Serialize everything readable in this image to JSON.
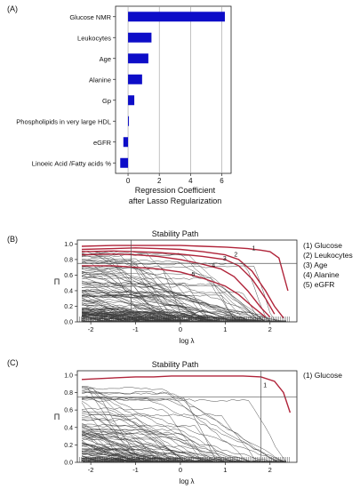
{
  "colors": {
    "bar": "#0d0dc8",
    "highlight": "#b0243a",
    "path": "#3c3c3c",
    "grid": "#9a9a9a"
  },
  "panel_labels": [
    "(A)",
    "(B)",
    "(C)"
  ],
  "chart_data": [
    {
      "type": "bar",
      "orientation": "horizontal",
      "panel": "(A)",
      "categories": [
        "Glucose NMR",
        "Leukocytes",
        "Age",
        "Alanine",
        "Gp",
        "Phospholipids in very large HDL",
        "eGFR",
        "Linoeic Acid /Fatty acids %"
      ],
      "values": [
        6.2,
        1.5,
        1.3,
        0.9,
        0.4,
        0.05,
        -0.3,
        -0.5
      ],
      "xlabel": "Regression Coefficient",
      "xlabel2": "after Lasso Regularization",
      "xticks": [
        "0",
        "2",
        "4",
        "6"
      ],
      "xlim": [
        -0.8,
        6.6
      ],
      "grid": "vertical"
    },
    {
      "type": "line",
      "panel": "(B)",
      "title": "Stability Path",
      "xlabel": "log λ",
      "ylabel": "Π",
      "xlim": [
        -2.3,
        2.6
      ],
      "ylim": [
        0,
        1.05
      ],
      "xticks": [
        "-2",
        "-1",
        "0",
        "1",
        "2"
      ],
      "yticks": [
        "0.0",
        "0.2",
        "0.4",
        "0.6",
        "0.8",
        "1.0"
      ],
      "threshold": 0.75,
      "vline": -1.1,
      "background_series_count": 120,
      "series": [
        {
          "name": "(1) Glucose",
          "path_label": "1",
          "x": [
            -2.2,
            -1.5,
            -1.0,
            -0.5,
            0.0,
            0.5,
            1.0,
            1.5,
            1.8,
            2.0,
            2.2,
            2.4
          ],
          "y": [
            0.97,
            0.98,
            0.98,
            0.98,
            0.98,
            0.97,
            0.96,
            0.94,
            0.92,
            0.9,
            0.82,
            0.4
          ]
        },
        {
          "name": "(2) Leukocytes",
          "path_label": "2",
          "x": [
            -2.2,
            -1.5,
            -1.0,
            -0.5,
            0.0,
            0.5,
            1.0,
            1.3,
            1.6,
            1.9,
            2.1,
            2.3
          ],
          "y": [
            0.93,
            0.94,
            0.95,
            0.94,
            0.93,
            0.9,
            0.86,
            0.8,
            0.65,
            0.4,
            0.2,
            0.05
          ]
        },
        {
          "name": "(3) Age",
          "path_label": "3",
          "x": [
            -2.2,
            -1.5,
            -1.0,
            -0.5,
            0.0,
            0.5,
            1.0,
            1.3,
            1.6,
            1.9,
            2.1
          ],
          "y": [
            0.9,
            0.91,
            0.9,
            0.89,
            0.87,
            0.84,
            0.8,
            0.72,
            0.55,
            0.3,
            0.1
          ]
        },
        {
          "name": "(4) Alanine",
          "path_label": "4",
          "x": [
            -2.2,
            -1.5,
            -1.0,
            -0.5,
            0.0,
            0.5,
            0.9,
            1.2,
            1.5,
            1.8,
            2.0
          ],
          "y": [
            0.86,
            0.87,
            0.86,
            0.84,
            0.8,
            0.74,
            0.68,
            0.58,
            0.4,
            0.18,
            0.06
          ]
        },
        {
          "name": "(5) eGFR",
          "path_label": "5",
          "x": [
            -2.2,
            -1.5,
            -1.0,
            -0.5,
            0.0,
            0.5,
            1.0,
            1.3,
            1.6,
            1.9
          ],
          "y": [
            0.72,
            0.72,
            0.7,
            0.68,
            0.64,
            0.56,
            0.46,
            0.35,
            0.2,
            0.06
          ]
        }
      ]
    },
    {
      "type": "line",
      "panel": "(C)",
      "title": "Stability Path",
      "xlabel": "log λ",
      "ylabel": "Π",
      "xlim": [
        -2.3,
        2.6
      ],
      "ylim": [
        0,
        1.05
      ],
      "xticks": [
        "-2",
        "-1",
        "0",
        "1",
        "2"
      ],
      "yticks": [
        "0.0",
        "0.2",
        "0.4",
        "0.6",
        "0.8",
        "1.0"
      ],
      "threshold": 0.75,
      "vline": 1.8,
      "background_series_count": 90,
      "series": [
        {
          "name": "(1) Glucose",
          "path_label": "1",
          "x": [
            -2.2,
            -1.8,
            -1.4,
            -1.0,
            -0.6,
            -0.2,
            0.2,
            0.6,
            1.0,
            1.4,
            1.8,
            2.1,
            2.3,
            2.45
          ],
          "y": [
            0.95,
            0.96,
            0.97,
            0.98,
            0.98,
            0.99,
            0.99,
            0.99,
            0.99,
            0.99,
            0.98,
            0.93,
            0.8,
            0.57
          ]
        }
      ]
    }
  ]
}
